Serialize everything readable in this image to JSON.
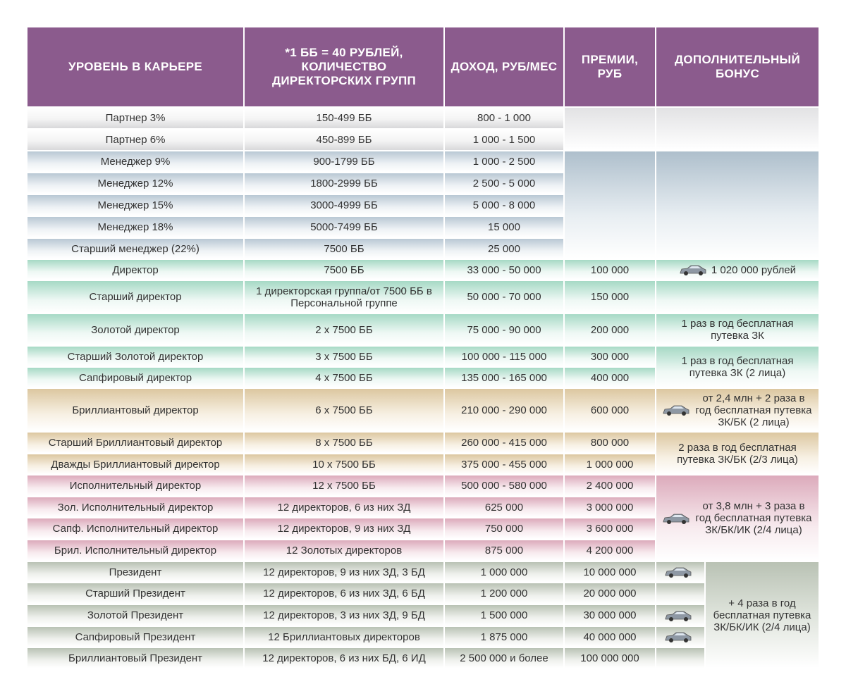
{
  "table": {
    "headers": [
      "УРОВЕНЬ В КАРЬЕРЕ",
      "*1 ББ = 40 РУБЛЕЙ, КОЛИЧЕСТВО ДИРЕКТОРСКИХ ГРУПП",
      "ДОХОД, РУБ/МЕС",
      "ПРЕМИИ, РУБ",
      "ДОПОЛНИТЕЛЬНЫЙ БОНУС"
    ],
    "rows": [
      [
        "Партнер 3%",
        "150-499 ББ",
        "800 - 1 000"
      ],
      [
        "Партнер 6%",
        "450-899 ББ",
        "1 000 - 1 500"
      ],
      [
        "Менеджер 9%",
        "900-1799 ББ",
        "1 000 - 2 500"
      ],
      [
        "Менеджер 12%",
        "1800-2999 ББ",
        "2 500 - 5 000"
      ],
      [
        "Менеджер 15%",
        "3000-4999 ББ",
        "5 000 - 8 000"
      ],
      [
        "Менеджер 18%",
        "5000-7499 ББ",
        "15 000"
      ],
      [
        "Старший менеджер (22%)",
        "7500 ББ",
        "25 000"
      ],
      [
        "Директор",
        "7500 ББ",
        "33 000 - 50 000",
        "100 000"
      ],
      [
        "Старший директор",
        "1 директорская группа/от 7500 ББ в Персональной группе",
        "50 000 - 70 000",
        "150 000"
      ],
      [
        "Золотой директор",
        "2 x 7500 ББ",
        "75 000 - 90 000",
        "200 000"
      ],
      [
        "Старший Золотой директор",
        "3 x 7500 ББ",
        "100 000 - 115 000",
        "300 000"
      ],
      [
        "Сапфировый директор",
        "4 x 7500 ББ",
        "135 000 - 165 000",
        "400 000"
      ],
      [
        "Бриллиантовый директор",
        "6 x 7500 ББ",
        "210 000 - 290 000",
        "600 000"
      ],
      [
        "Старший Бриллиантовый директор",
        "8 x 7500 ББ",
        "260 000 - 415 000",
        "800 000"
      ],
      [
        "Дважды Бриллиантовый директор",
        "10 x 7500 ББ",
        "375 000 - 455 000",
        "1 000 000"
      ],
      [
        "Исполнительный директор",
        "12 x 7500 ББ",
        "500 000 - 580 000",
        "2 400 000"
      ],
      [
        "Зол. Исполнительный директор",
        "12 директоров, 6 из них ЗД",
        "625 000",
        "3 000 000"
      ],
      [
        "Сапф. Исполнительный директор",
        "12 директоров, 9 из них ЗД",
        "750 000",
        "3 600 000"
      ],
      [
        "Брил. Исполнительный директор",
        "12 Золотых директоров",
        "875 000",
        "4 200 000"
      ],
      [
        "Президент",
        "12 директоров, 9 из них ЗД, 3 БД",
        "1 000 000",
        "10 000 000"
      ],
      [
        "Старший Президент",
        "12 директоров, 6 из них ЗД, 6 БД",
        "1 200 000",
        "20 000 000"
      ],
      [
        "Золотой Президент",
        "12 директоров, 3 из них ЗД, 9 БД",
        "1 500 000",
        "30 000 000"
      ],
      [
        "Сапфировый Президент",
        "12 Бриллиантовых директоров",
        "1 875 000",
        "40 000 000"
      ],
      [
        "Бриллиантовый Президент",
        "12 директоров, 6 из них БД, 6 ИД",
        "2 500 000 и более",
        "100 000 000"
      ]
    ],
    "bonuses": [
      "1 020 000 рублей",
      "1 раз в год бесплатная путевка ЗК",
      "1 раз в год бесплатная путевка ЗК (2 лица)",
      "от 2,4 млн + 2 раза в год бесплатная путевка ЗК/БК (2 лица)",
      "2 раза в год бесплатная путевка ЗК/БК (2/3 лица)",
      "от 3,8 млн + 3 раза в год бесплатная путевка ЗК/БК/ИК (2/4 лица)",
      "+ 4 раза в год бесплатная путевка ЗК/БК/ИК (2/4 лица)"
    ]
  }
}
